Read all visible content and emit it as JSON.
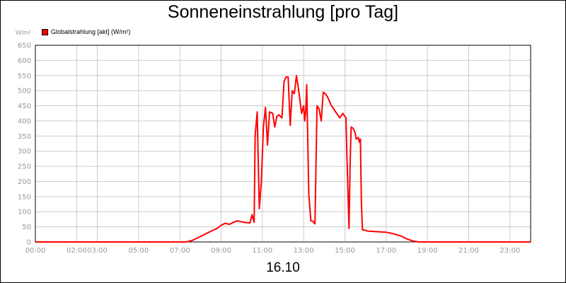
{
  "chart_data": {
    "type": "line",
    "title": "Sonneneinstrahlung [pro Tag]",
    "date_label": "16.10",
    "y_unit": "W/m²",
    "legend_position": "top-left",
    "grid": true,
    "xlim": [
      0,
      24
    ],
    "ylim": [
      0,
      650
    ],
    "y_ticks": [
      0,
      50,
      100,
      150,
      200,
      250,
      300,
      350,
      400,
      450,
      500,
      550,
      600,
      650
    ],
    "x_tick_labels": [
      {
        "label": "00:00",
        "hour": 0
      },
      {
        "label": "02:00",
        "hour": 2
      },
      {
        "label": "03:00",
        "hour": 3
      },
      {
        "label": "05:00",
        "hour": 5
      },
      {
        "label": "07:00",
        "hour": 7
      },
      {
        "label": "09:00",
        "hour": 9
      },
      {
        "label": "11:00",
        "hour": 11
      },
      {
        "label": "13:00",
        "hour": 13
      },
      {
        "label": "15:00",
        "hour": 15
      },
      {
        "label": "17:00",
        "hour": 17
      },
      {
        "label": "19:00",
        "hour": 19
      },
      {
        "label": "21:00",
        "hour": 21
      },
      {
        "label": "23:00",
        "hour": 23
      }
    ],
    "series": [
      {
        "name": "Globalstrahlung [akt] (W/m²)",
        "color": "#ff0000",
        "x": [
          0,
          7.3,
          7.6,
          7.9,
          8.2,
          8.5,
          8.8,
          9.0,
          9.2,
          9.4,
          9.6,
          9.8,
          10.1,
          10.4,
          10.5,
          10.6,
          10.65,
          10.75,
          10.85,
          10.95,
          11.05,
          11.15,
          11.25,
          11.35,
          11.5,
          11.6,
          11.7,
          11.8,
          11.95,
          12.05,
          12.15,
          12.25,
          12.35,
          12.45,
          12.55,
          12.65,
          12.72,
          12.8,
          12.9,
          13.0,
          13.05,
          13.1,
          13.15,
          13.25,
          13.35,
          13.45,
          13.55,
          13.65,
          13.75,
          13.85,
          13.95,
          14.05,
          14.15,
          14.25,
          14.35,
          14.45,
          14.6,
          14.75,
          14.9,
          14.95,
          15.05,
          15.1,
          15.2,
          15.25,
          15.3,
          15.4,
          15.5,
          15.55,
          15.65,
          15.7,
          15.75,
          15.8,
          15.85,
          15.9,
          16.0,
          16.1,
          17.0,
          17.3,
          17.7,
          18.0,
          18.3,
          18.6,
          19.0,
          24.0
        ],
        "y": [
          0,
          0,
          5,
          15,
          25,
          35,
          45,
          55,
          62,
          58,
          65,
          70,
          65,
          63,
          90,
          65,
          350,
          430,
          110,
          200,
          380,
          445,
          320,
          430,
          425,
          380,
          415,
          420,
          410,
          530,
          545,
          545,
          385,
          500,
          490,
          550,
          520,
          480,
          425,
          450,
          400,
          430,
          520,
          155,
          70,
          68,
          60,
          450,
          440,
          400,
          495,
          490,
          480,
          465,
          450,
          440,
          425,
          410,
          425,
          420,
          410,
          280,
          45,
          250,
          380,
          375,
          360,
          340,
          345,
          330,
          340,
          130,
          40,
          40,
          38,
          36,
          32,
          28,
          20,
          10,
          3,
          0,
          0,
          0
        ]
      }
    ]
  }
}
